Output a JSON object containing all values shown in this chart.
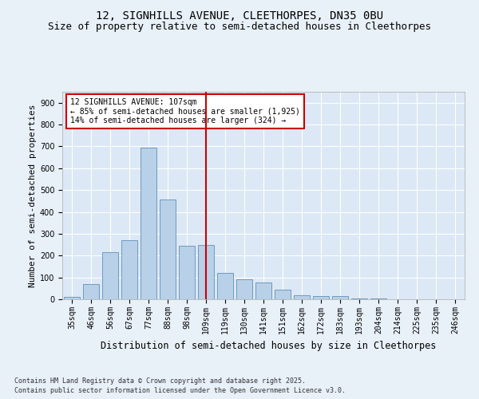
{
  "title1": "12, SIGNHILLS AVENUE, CLEETHORPES, DN35 0BU",
  "title2": "Size of property relative to semi-detached houses in Cleethorpes",
  "xlabel": "Distribution of semi-detached houses by size in Cleethorpes",
  "ylabel": "Number of semi-detached properties",
  "categories": [
    "35sqm",
    "46sqm",
    "56sqm",
    "67sqm",
    "77sqm",
    "88sqm",
    "98sqm",
    "109sqm",
    "119sqm",
    "130sqm",
    "141sqm",
    "151sqm",
    "162sqm",
    "172sqm",
    "183sqm",
    "193sqm",
    "204sqm",
    "214sqm",
    "225sqm",
    "235sqm",
    "246sqm"
  ],
  "values": [
    10,
    70,
    215,
    270,
    695,
    455,
    245,
    250,
    120,
    90,
    75,
    45,
    20,
    15,
    15,
    5,
    5,
    0,
    0,
    0,
    0
  ],
  "bar_color": "#b8d0e8",
  "bar_edge_color": "#6090b8",
  "highlight_index": 7,
  "annotation_title": "12 SIGNHILLS AVENUE: 107sqm",
  "annotation_line1": "← 85% of semi-detached houses are smaller (1,925)",
  "annotation_line2": "14% of semi-detached houses are larger (324) →",
  "annotation_box_color": "#ffffff",
  "annotation_box_edge": "#cc0000",
  "vline_color": "#cc0000",
  "background_color": "#e8f0f8",
  "plot_bg_color": "#dce8f5",
  "ylim": [
    0,
    950
  ],
  "yticks": [
    0,
    100,
    200,
    300,
    400,
    500,
    600,
    700,
    800,
    900
  ],
  "footnote1": "Contains HM Land Registry data © Crown copyright and database right 2025.",
  "footnote2": "Contains public sector information licensed under the Open Government Licence v3.0.",
  "title1_fontsize": 10,
  "title2_fontsize": 9,
  "tick_fontsize": 7,
  "ylabel_fontsize": 8,
  "xlabel_fontsize": 8.5,
  "annot_fontsize": 7,
  "footnote_fontsize": 6
}
